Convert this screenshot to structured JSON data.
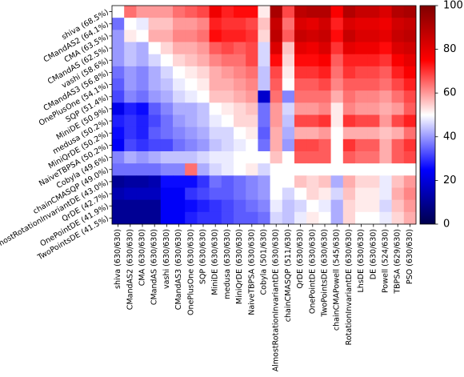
{
  "chart_data": {
    "type": "heatmap",
    "row_labels": [
      "shiva (68.5%)",
      "CMandAS2 (64.1%)",
      "CMA (63.5%)",
      "CMandAS (62.5%)",
      "vashi (58.6%)",
      "CMandAS3 (56.8%)",
      "OnePlusOne (54.1%)",
      "SQP (51.4%)",
      "MiniDE (50.9%)",
      "medusa (50.2%)",
      "MiniQrDE (50.2%)",
      "NaiveTBPSA (50.2%)",
      "Cobyla (49.6%)",
      "chainCMASQP (49.0%)",
      "AlmostRotationInvariantDE (43.0%)",
      "QrDE (42.7%)",
      "OnePointDE (41.9%)",
      "TwoPointsDE (41.5%)"
    ],
    "col_labels": [
      "shiva (630/630)",
      "CMandAS2 (630/630)",
      "CMA (630/630)",
      "CMandAS (630/630)",
      "vashi (630/630)",
      "CMandAS3 (630/630)",
      "OnePlusOne (630/630)",
      "SQP (630/630)",
      "MiniDE (630/630)",
      "medusa (630/630)",
      "MiniQrDE (630/630)",
      "NaiveTBPSA (630/630)",
      "Cobyla (501/630)",
      "AlmostRotationInvariantDE (630/630)",
      "chainCMASQP (511/630)",
      "QrDE (630/630)",
      "OnePointDE (630/630)",
      "TwoPointsDE (630/630)",
      "chainCMAPowell (545/630)",
      "RotationInvariantDE (630/630)",
      "LhsDE (630/630)",
      "DE (630/630)",
      "Powell (524/630)",
      "TBPSA (629/630)",
      "PSO (630/630)"
    ],
    "values": [
      [
        50,
        64,
        60,
        60,
        60,
        64,
        66,
        68,
        78,
        72,
        74,
        74,
        52,
        92,
        68,
        88,
        90,
        90,
        76,
        90,
        86,
        86,
        82,
        90,
        92
      ],
      [
        36,
        50,
        48,
        56,
        56,
        60,
        60,
        62,
        72,
        70,
        70,
        68,
        56,
        86,
        64,
        82,
        80,
        84,
        72,
        82,
        80,
        80,
        78,
        84,
        86
      ],
      [
        40,
        52,
        50,
        58,
        58,
        62,
        62,
        64,
        74,
        72,
        72,
        70,
        54,
        88,
        66,
        86,
        84,
        86,
        74,
        86,
        82,
        82,
        80,
        86,
        88
      ],
      [
        40,
        44,
        42,
        50,
        54,
        58,
        58,
        60,
        66,
        68,
        66,
        68,
        46,
        82,
        56,
        80,
        78,
        82,
        70,
        80,
        78,
        78,
        74,
        82,
        84
      ],
      [
        40,
        44,
        42,
        46,
        50,
        54,
        56,
        58,
        62,
        64,
        64,
        68,
        46,
        74,
        54,
        74,
        74,
        76,
        66,
        72,
        72,
        72,
        70,
        76,
        80
      ],
      [
        36,
        40,
        38,
        42,
        46,
        50,
        52,
        54,
        58,
        60,
        62,
        64,
        44,
        68,
        52,
        70,
        70,
        72,
        64,
        70,
        68,
        68,
        66,
        72,
        76
      ],
      [
        34,
        40,
        38,
        42,
        44,
        48,
        50,
        52,
        58,
        58,
        60,
        62,
        44,
        66,
        50,
        66,
        66,
        68,
        62,
        66,
        66,
        66,
        64,
        68,
        72
      ],
      [
        32,
        38,
        36,
        40,
        42,
        46,
        48,
        50,
        56,
        56,
        58,
        60,
        18,
        64,
        38,
        64,
        64,
        64,
        58,
        64,
        62,
        62,
        60,
        64,
        68
      ],
      [
        22,
        28,
        26,
        34,
        38,
        42,
        42,
        44,
        50,
        52,
        54,
        56,
        36,
        60,
        46,
        60,
        60,
        62,
        52,
        62,
        60,
        60,
        58,
        60,
        66
      ],
      [
        28,
        30,
        28,
        32,
        36,
        40,
        42,
        44,
        48,
        50,
        54,
        54,
        36,
        60,
        44,
        68,
        68,
        70,
        52,
        70,
        68,
        68,
        60,
        68,
        72
      ],
      [
        26,
        30,
        28,
        34,
        36,
        38,
        40,
        42,
        46,
        46,
        50,
        52,
        34,
        58,
        42,
        58,
        58,
        60,
        50,
        58,
        58,
        58,
        56,
        58,
        64
      ],
      [
        24,
        32,
        30,
        32,
        32,
        36,
        38,
        40,
        44,
        46,
        48,
        50,
        36,
        58,
        40,
        68,
        68,
        66,
        50,
        70,
        66,
        66,
        58,
        66,
        70
      ],
      [
        38,
        42,
        40,
        42,
        44,
        44,
        44,
        46,
        48,
        48,
        50,
        50,
        50,
        56,
        50,
        66,
        66,
        66,
        50,
        66,
        64,
        64,
        58,
        66,
        68
      ],
      [
        36,
        36,
        36,
        36,
        38,
        38,
        64,
        42,
        46,
        48,
        50,
        52,
        46,
        50,
        50,
        50,
        50,
        50,
        50,
        50,
        50,
        50,
        50,
        50,
        50
      ],
      [
        10,
        12,
        12,
        14,
        26,
        26,
        26,
        30,
        36,
        34,
        36,
        38,
        40,
        50,
        50,
        56,
        54,
        56,
        42,
        58,
        54,
        54,
        48,
        56,
        60
      ],
      [
        14,
        16,
        16,
        16,
        24,
        24,
        30,
        32,
        34,
        34,
        36,
        38,
        40,
        50,
        46,
        50,
        54,
        52,
        46,
        56,
        52,
        52,
        48,
        58,
        62
      ],
      [
        10,
        10,
        10,
        10,
        24,
        24,
        26,
        28,
        30,
        32,
        34,
        36,
        38,
        48,
        44,
        46,
        50,
        48,
        42,
        54,
        52,
        52,
        46,
        56,
        60
      ],
      [
        10,
        10,
        10,
        10,
        24,
        24,
        28,
        30,
        30,
        32,
        34,
        34,
        36,
        46,
        44,
        48,
        52,
        50,
        42,
        54,
        50,
        50,
        48,
        54,
        58
      ]
    ],
    "colormap": "seismic",
    "vmin": 0,
    "vmax": 100,
    "colorbar_ticks": [
      0,
      20,
      40,
      60,
      80,
      100
    ]
  }
}
